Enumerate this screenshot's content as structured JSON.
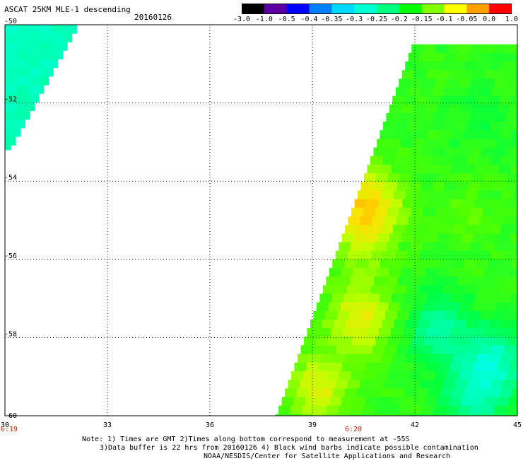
{
  "header": {
    "title": "ASCAT 25KM MLE-1 descending",
    "date": "20160126"
  },
  "colorbar": {
    "labels": [
      "-3.0",
      "-1.0",
      "-0.5",
      "-0.4",
      "-0.35",
      "-0.3",
      "-0.25",
      "-0.2",
      "-0.15",
      "-0.1",
      "-0.05",
      "0.0",
      "1.0"
    ],
    "colors": [
      "#000000",
      "#5a00a0",
      "#0000ff",
      "#0080ff",
      "#00d8ff",
      "#00ffd0",
      "#00ff80",
      "#00ff00",
      "#80ff00",
      "#ffff00",
      "#ffa000",
      "#ff0000"
    ]
  },
  "time_labels": {
    "left": "6:19",
    "mid": "6:20"
  },
  "notes": {
    "line1": "Note: 1) Times are GMT 2)Times along bottom correspond to measurement at -55S",
    "line2": "3)Data buffer is 22 hrs from 20160126 4) Black wind barbs indicate possible contamination",
    "line3": "NOAA/NESDIS/Center for Satellite Applications and Research"
  },
  "chart_data": {
    "type": "heatmap",
    "title": "ASCAT 25KM MLE-1 descending",
    "x_ticks": [
      "30",
      "33",
      "36",
      "39",
      "42",
      "45"
    ],
    "y_ticks": [
      "-50",
      "-52",
      "-54",
      "-56",
      "-58",
      "-60"
    ],
    "xlim": [
      30,
      45
    ],
    "ylim": [
      -60,
      -50
    ],
    "grid": true,
    "value_range": [
      -3.0,
      1.0
    ],
    "swaths": [
      {
        "name": "west",
        "lat_range": [
          -53.2,
          -50
        ],
        "lon_west": 30,
        "lon_east_at_top": 32.1,
        "lon_east_at_bottom": 30.1,
        "typical_value": -0.27
      },
      {
        "name": "east",
        "lat_range": [
          -60,
          -50.5
        ],
        "lon_west_at_top": 41.9,
        "lon_west_at_bottom": 37.9,
        "lon_east": 45,
        "typical_value": -0.17
      }
    ],
    "features": [
      {
        "lat": -54.6,
        "lon": 40.7,
        "value": -0.05
      },
      {
        "lat": -57.5,
        "lon": 40.4,
        "value": -0.07
      },
      {
        "lat": -59.3,
        "lon": 39.2,
        "value": -0.08
      },
      {
        "lat": -55.5,
        "lon": 40.4,
        "value": -0.12
      },
      {
        "lat": -54.9,
        "lon": 43.5,
        "value": -0.15
      },
      {
        "lat": -59.5,
        "lon": 43.7,
        "value": -0.25
      },
      {
        "lat": -57.8,
        "lon": 42.7,
        "value": -0.25
      },
      {
        "lat": -58.6,
        "lon": 44.3,
        "value": -0.27
      },
      {
        "lat": -52.5,
        "lon": 44.0,
        "value": -0.19
      }
    ]
  }
}
